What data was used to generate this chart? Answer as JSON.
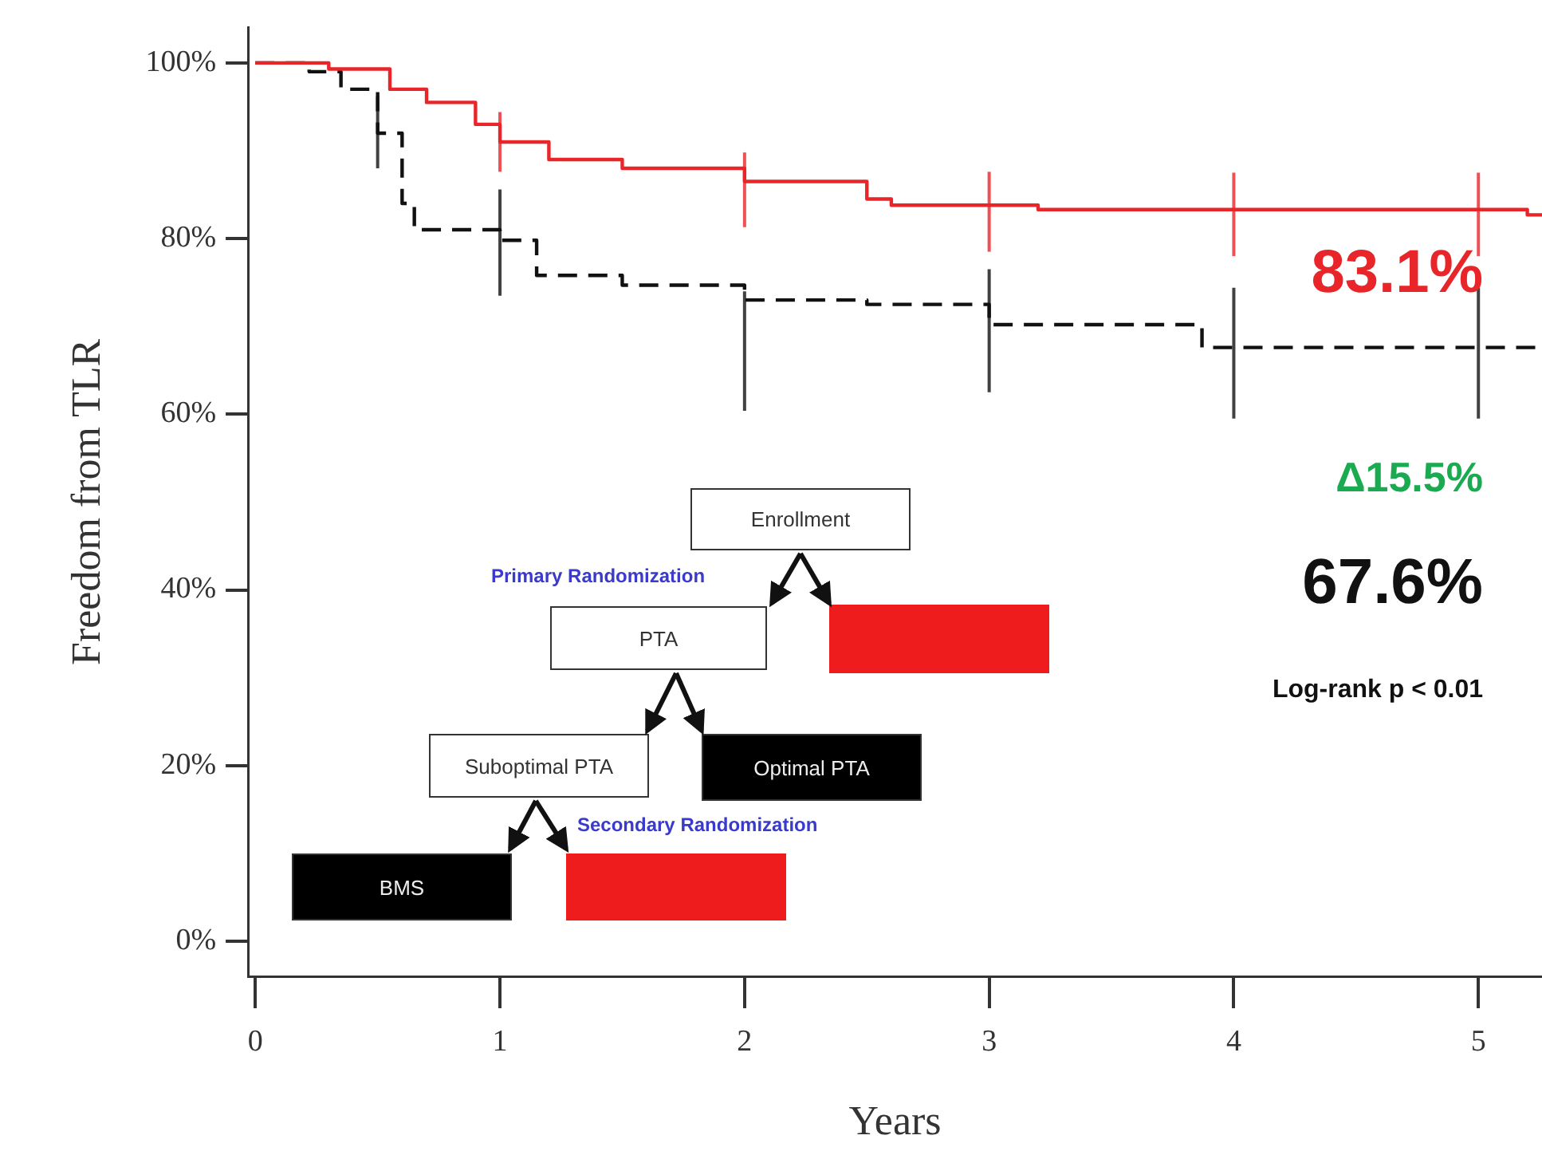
{
  "chart_data": {
    "type": "step",
    "xlabel": "Years",
    "ylabel": "Freedom from TLR",
    "xlim": [
      -0.03,
      5.26
    ],
    "ylim": [
      -4,
      104
    ],
    "xticks": [
      0,
      1,
      2,
      3,
      4,
      5
    ],
    "yticks": [
      {
        "value": 0,
        "label": "0%"
      },
      {
        "value": 20,
        "label": "20%"
      },
      {
        "value": 40,
        "label": "40%"
      },
      {
        "value": 60,
        "label": "60%"
      },
      {
        "value": 80,
        "label": "80%"
      },
      {
        "value": 100,
        "label": "100%"
      }
    ],
    "grid": false,
    "legend": false,
    "marker": "none",
    "series": [
      {
        "color": "#e8262a",
        "line_style": "solid",
        "x": [
          0,
          0.3,
          0.55,
          0.7,
          0.9,
          1,
          1.2,
          1.5,
          2,
          2.5,
          2.6,
          3,
          3.2,
          4,
          5,
          5.2,
          5.26
        ],
        "values": [
          100,
          99.3,
          97,
          95.5,
          93,
          91,
          89,
          88,
          86.5,
          84.5,
          83.8,
          83.8,
          83.3,
          83.3,
          83.3,
          82.7,
          82.7
        ],
        "errors": [
          null,
          null,
          null,
          null,
          null,
          [
            87.6,
            94.4
          ],
          null,
          null,
          [
            81.3,
            89.8
          ],
          null,
          null,
          [
            78.5,
            87.6
          ],
          null,
          [
            78,
            87.5
          ],
          [
            78,
            87.5
          ],
          null,
          null
        ]
      },
      {
        "color": "#111111",
        "line_style": "dashed",
        "x": [
          0,
          0.22,
          0.35,
          0.5,
          0.6,
          0.65,
          1,
          1.15,
          1.5,
          2,
          2.5,
          3,
          3.87,
          4,
          5,
          5.26
        ],
        "values": [
          100,
          99,
          97,
          92,
          84,
          81,
          79.8,
          75.8,
          74.7,
          73,
          72.5,
          70.2,
          67.6,
          67.6,
          67.6,
          67.6
        ],
        "errors": [
          null,
          null,
          null,
          [
            88,
            96.2
          ],
          null,
          null,
          [
            73.5,
            85.6
          ],
          null,
          null,
          [
            60.4,
            74
          ],
          null,
          [
            62.5,
            76.5
          ],
          null,
          [
            59.5,
            74.4
          ],
          [
            59.5,
            74.4
          ],
          null
        ]
      }
    ],
    "annotations": [
      "83.1%",
      "Δ15.5%",
      "67.6%",
      "Log-rank p < 0.01",
      "Enrollment",
      "Primary Randomization",
      "PTA",
      "Suboptimal PTA",
      "Optimal PTA",
      "Secondary Randomization",
      "BMS"
    ]
  }
}
